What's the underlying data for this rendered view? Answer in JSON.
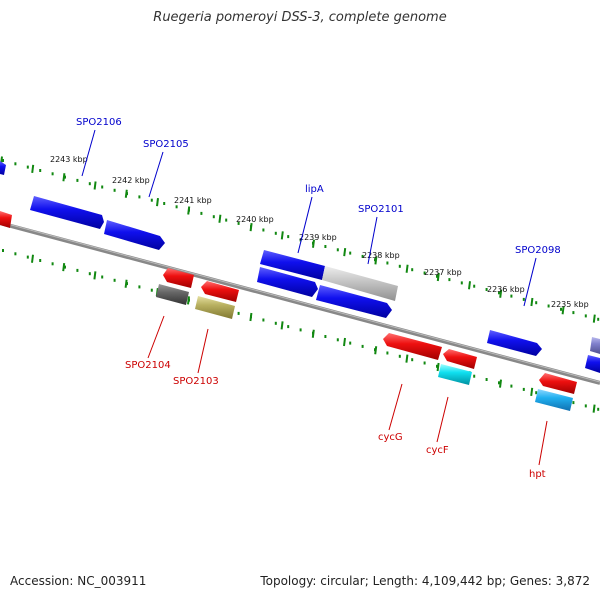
{
  "title": "Ruegeria pomeroyi DSS-3, complete genome",
  "footer": {
    "accession_label": "Accession:",
    "accession": "NC_003911",
    "topology_label": "Topology:",
    "topology": "circular",
    "length_label": "Length:",
    "length": "4,109,442 bp",
    "genes_label": "Genes:",
    "genes": "3,872"
  },
  "kbp_ticks": [
    "2243 kbp",
    "2242 kbp",
    "2241 kbp",
    "2240 kbp",
    "2239 kbp",
    "2238 kbp",
    "2237 kbp",
    "2236 kbp",
    "2235 kbp"
  ],
  "forward_gene_labels": [
    "SPO2106",
    "SPO2105",
    "lipA",
    "SPO2101",
    "SPO2098"
  ],
  "reverse_gene_labels": [
    "SPO2104",
    "SPO2103",
    "cycG",
    "cycF",
    "hpt"
  ],
  "colors": {
    "backbone": "#888888",
    "forward_gene": "#1010ee",
    "reverse_gene": "#ee1010",
    "cyan_gene": "#10e0f0",
    "light_blue_gene": "#20b0f0",
    "gray_gene": "#c8c8c8",
    "dark_gray_gene": "#666666",
    "olive_gene": "#b8b060",
    "purple_gene": "#8080cc",
    "tick_green": "#118811"
  }
}
